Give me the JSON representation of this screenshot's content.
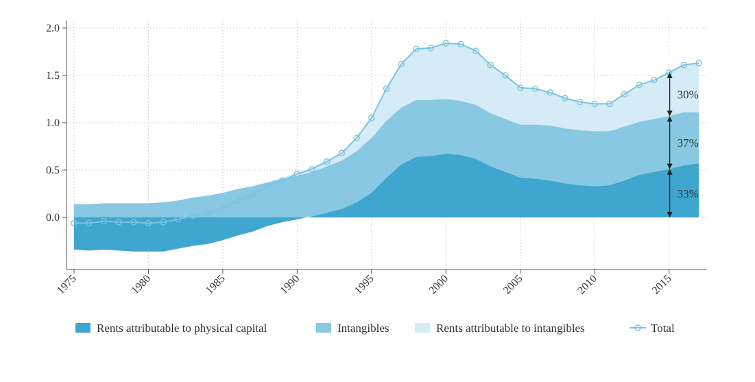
{
  "chart_data": {
    "type": "area",
    "x": [
      1975,
      1976,
      1977,
      1978,
      1979,
      1980,
      1981,
      1982,
      1983,
      1984,
      1985,
      1986,
      1987,
      1988,
      1989,
      1990,
      1991,
      1992,
      1993,
      1994,
      1995,
      1996,
      1997,
      1998,
      1999,
      2000,
      2001,
      2002,
      2003,
      2004,
      2005,
      2006,
      2007,
      2008,
      2009,
      2010,
      2011,
      2012,
      2013,
      2014,
      2015,
      2016,
      2017
    ],
    "xticks": [
      1975,
      1980,
      1985,
      1990,
      1995,
      2000,
      2005,
      2010,
      2015
    ],
    "ylim": [
      -0.55,
      2.05
    ],
    "yticks": [
      0.0,
      0.5,
      1.0,
      1.5,
      2.0
    ],
    "ytick_labels": [
      "0.0",
      "0.5",
      "1.0",
      "1.5",
      "2.0"
    ],
    "grid": true,
    "legend_position": "bottom",
    "series": [
      {
        "name": "Rents attributable to physical capital",
        "kind": "area-bottom",
        "color": "#3ea6cf",
        "values": [
          -0.34,
          -0.35,
          -0.34,
          -0.35,
          -0.36,
          -0.36,
          -0.36,
          -0.33,
          -0.3,
          -0.28,
          -0.24,
          -0.19,
          -0.15,
          -0.09,
          -0.05,
          -0.02,
          0.01,
          0.05,
          0.09,
          0.16,
          0.26,
          0.42,
          0.56,
          0.64,
          0.65,
          0.67,
          0.66,
          0.62,
          0.54,
          0.48,
          0.42,
          0.41,
          0.39,
          0.36,
          0.34,
          0.33,
          0.34,
          0.39,
          0.45,
          0.48,
          0.51,
          0.55,
          0.57
        ]
      },
      {
        "name": "Intangibles",
        "kind": "area-top",
        "color": "#88c8e2",
        "values": [
          0.14,
          0.14,
          0.15,
          0.15,
          0.15,
          0.15,
          0.16,
          0.18,
          0.21,
          0.23,
          0.26,
          0.3,
          0.33,
          0.37,
          0.41,
          0.44,
          0.48,
          0.54,
          0.6,
          0.7,
          0.84,
          1.02,
          1.16,
          1.24,
          1.24,
          1.25,
          1.23,
          1.19,
          1.1,
          1.04,
          0.98,
          0.98,
          0.97,
          0.94,
          0.92,
          0.91,
          0.91,
          0.96,
          1.01,
          1.04,
          1.07,
          1.11,
          1.11
        ]
      },
      {
        "name": "Rents attributable to intangibles",
        "kind": "area-top",
        "color": "#d5ebf5",
        "values": [
          0.14,
          0.14,
          0.15,
          0.15,
          0.15,
          0.15,
          0.16,
          0.18,
          0.21,
          0.23,
          0.26,
          0.3,
          0.33,
          0.37,
          0.42,
          0.47,
          0.53,
          0.61,
          0.68,
          0.84,
          1.05,
          1.36,
          1.62,
          1.78,
          1.79,
          1.84,
          1.83,
          1.76,
          1.61,
          1.5,
          1.37,
          1.36,
          1.32,
          1.26,
          1.22,
          1.2,
          1.2,
          1.3,
          1.4,
          1.45,
          1.53,
          1.61,
          1.63
        ]
      },
      {
        "name": "Total",
        "kind": "line-markers",
        "color": "#7dc3e0",
        "values": [
          -0.06,
          -0.06,
          -0.04,
          -0.05,
          -0.05,
          -0.06,
          -0.05,
          -0.02,
          0.02,
          0.04,
          0.1,
          0.18,
          0.24,
          0.33,
          0.39,
          0.46,
          0.51,
          0.59,
          0.68,
          0.84,
          1.05,
          1.36,
          1.62,
          1.78,
          1.79,
          1.84,
          1.83,
          1.76,
          1.61,
          1.5,
          1.37,
          1.36,
          1.32,
          1.26,
          1.22,
          1.2,
          1.2,
          1.3,
          1.4,
          1.45,
          1.53,
          1.61,
          1.63
        ]
      }
    ],
    "annotations": [
      {
        "label": "30%",
        "x": 2015,
        "from": 1.07,
        "to": 1.53
      },
      {
        "label": "37%",
        "x": 2015,
        "from": 0.51,
        "to": 1.07
      },
      {
        "label": "33%",
        "x": 2015,
        "from": 0.0,
        "to": 0.51
      }
    ]
  },
  "colors": {
    "axis": "#555555",
    "grid": "#c8c8c8",
    "arrow": "#222222"
  }
}
